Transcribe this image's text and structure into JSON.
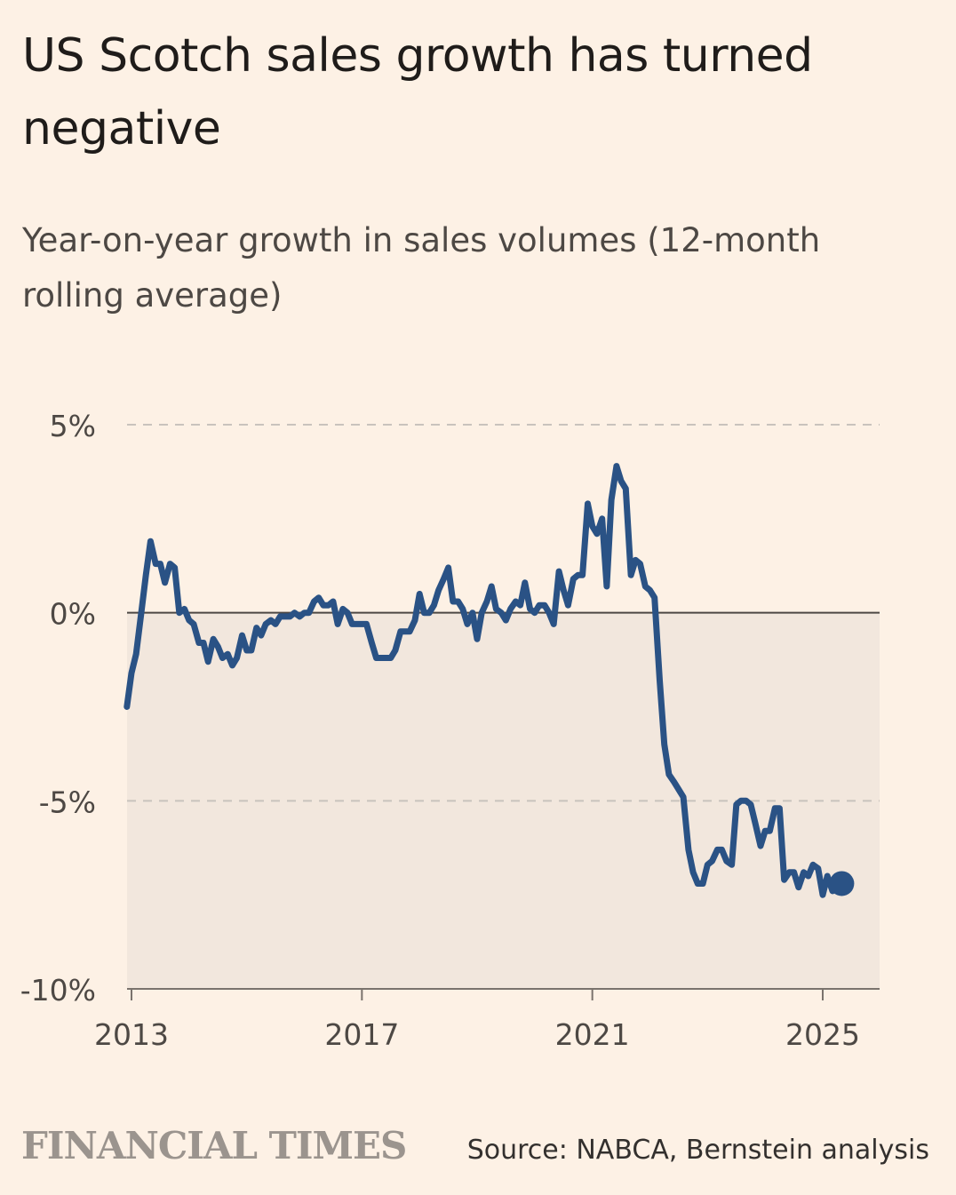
{
  "header": {
    "title": "US Scotch sales growth has turned negative",
    "subtitle": "Year-on-year growth in sales volumes (12-month rolling average)"
  },
  "footer": {
    "brand": "FINANCIAL TIMES",
    "source": "Source: NABCA, Bernstein analysis"
  },
  "colors": {
    "line": "#2a5285",
    "area": "#f2e7dd",
    "background": "#fdf1e5",
    "grid": "#c9c3bd",
    "zero": "#4d4844"
  },
  "chart_data": {
    "type": "line",
    "title": "US Scotch sales growth has turned negative",
    "subtitle": "Year-on-year growth in sales volumes (12-month rolling average)",
    "xlabel": "",
    "ylabel": "",
    "xlim": [
      2012.95,
      2025.97
    ],
    "ylim": [
      -10,
      5
    ],
    "yticks": [
      5,
      0,
      -5,
      -10
    ],
    "ytick_labels": [
      "5%",
      "0%",
      "-5%",
      "-10%"
    ],
    "xticks": [
      2013,
      2017,
      2021,
      2025
    ],
    "xtick_labels": [
      "2013",
      "2017",
      "2021",
      "2025"
    ],
    "grid": true,
    "series": [
      {
        "name": "Year-on-year growth in sales volumes",
        "points": [
          [
            2012.92,
            -2.5
          ],
          [
            2013.0,
            -1.6
          ],
          [
            2013.08,
            -1.1
          ],
          [
            2013.17,
            0.0
          ],
          [
            2013.25,
            1.0
          ],
          [
            2013.33,
            1.9
          ],
          [
            2013.42,
            1.3
          ],
          [
            2013.5,
            1.3
          ],
          [
            2013.58,
            0.8
          ],
          [
            2013.67,
            1.3
          ],
          [
            2013.75,
            1.2
          ],
          [
            2013.83,
            0.0
          ],
          [
            2013.92,
            0.1
          ],
          [
            2014.0,
            -0.2
          ],
          [
            2014.08,
            -0.3
          ],
          [
            2014.17,
            -0.8
          ],
          [
            2014.25,
            -0.8
          ],
          [
            2014.33,
            -1.3
          ],
          [
            2014.42,
            -0.7
          ],
          [
            2014.5,
            -0.9
          ],
          [
            2014.58,
            -1.2
          ],
          [
            2014.67,
            -1.1
          ],
          [
            2014.75,
            -1.4
          ],
          [
            2014.83,
            -1.2
          ],
          [
            2014.92,
            -0.6
          ],
          [
            2015.0,
            -1.0
          ],
          [
            2015.08,
            -1.0
          ],
          [
            2015.17,
            -0.4
          ],
          [
            2015.25,
            -0.6
          ],
          [
            2015.33,
            -0.3
          ],
          [
            2015.42,
            -0.2
          ],
          [
            2015.5,
            -0.3
          ],
          [
            2015.58,
            -0.1
          ],
          [
            2015.67,
            -0.1
          ],
          [
            2015.75,
            -0.1
          ],
          [
            2015.83,
            0.0
          ],
          [
            2015.92,
            -0.1
          ],
          [
            2016.0,
            0.0
          ],
          [
            2016.08,
            0.0
          ],
          [
            2016.17,
            0.3
          ],
          [
            2016.25,
            0.4
          ],
          [
            2016.33,
            0.2
          ],
          [
            2016.42,
            0.2
          ],
          [
            2016.5,
            0.3
          ],
          [
            2016.58,
            -0.3
          ],
          [
            2016.67,
            0.1
          ],
          [
            2016.75,
            0.0
          ],
          [
            2016.83,
            -0.3
          ],
          [
            2016.92,
            -0.3
          ],
          [
            2017.0,
            -0.3
          ],
          [
            2017.08,
            -0.3
          ],
          [
            2017.17,
            -0.8
          ],
          [
            2017.25,
            -1.2
          ],
          [
            2017.33,
            -1.2
          ],
          [
            2017.42,
            -1.2
          ],
          [
            2017.5,
            -1.2
          ],
          [
            2017.58,
            -1.0
          ],
          [
            2017.67,
            -0.5
          ],
          [
            2017.75,
            -0.5
          ],
          [
            2017.83,
            -0.5
          ],
          [
            2017.92,
            -0.2
          ],
          [
            2018.0,
            0.5
          ],
          [
            2018.08,
            0.0
          ],
          [
            2018.17,
            0.0
          ],
          [
            2018.25,
            0.2
          ],
          [
            2018.33,
            0.6
          ],
          [
            2018.42,
            0.9
          ],
          [
            2018.5,
            1.2
          ],
          [
            2018.58,
            0.3
          ],
          [
            2018.67,
            0.3
          ],
          [
            2018.75,
            0.1
          ],
          [
            2018.83,
            -0.3
          ],
          [
            2018.92,
            0.0
          ],
          [
            2019.0,
            -0.7
          ],
          [
            2019.08,
            0.0
          ],
          [
            2019.17,
            0.3
          ],
          [
            2019.25,
            0.7
          ],
          [
            2019.33,
            0.1
          ],
          [
            2019.42,
            0.0
          ],
          [
            2019.5,
            -0.2
          ],
          [
            2019.58,
            0.1
          ],
          [
            2019.67,
            0.3
          ],
          [
            2019.75,
            0.2
          ],
          [
            2019.83,
            0.8
          ],
          [
            2019.92,
            0.1
          ],
          [
            2020.0,
            0.0
          ],
          [
            2020.08,
            0.2
          ],
          [
            2020.17,
            0.2
          ],
          [
            2020.25,
            0.0
          ],
          [
            2020.33,
            -0.3
          ],
          [
            2020.42,
            1.1
          ],
          [
            2020.5,
            0.6
          ],
          [
            2020.58,
            0.2
          ],
          [
            2020.67,
            0.9
          ],
          [
            2020.75,
            1.0
          ],
          [
            2020.83,
            1.0
          ],
          [
            2020.92,
            2.9
          ],
          [
            2021.0,
            2.3
          ],
          [
            2021.08,
            2.1
          ],
          [
            2021.17,
            2.5
          ],
          [
            2021.25,
            0.7
          ],
          [
            2021.33,
            3.0
          ],
          [
            2021.42,
            3.9
          ],
          [
            2021.5,
            3.5
          ],
          [
            2021.58,
            3.3
          ],
          [
            2021.67,
            1.0
          ],
          [
            2021.75,
            1.4
          ],
          [
            2021.83,
            1.3
          ],
          [
            2021.92,
            0.7
          ],
          [
            2022.0,
            0.6
          ],
          [
            2022.08,
            0.4
          ],
          [
            2022.17,
            -1.8
          ],
          [
            2022.25,
            -3.5
          ],
          [
            2022.33,
            -4.3
          ],
          [
            2022.42,
            -4.5
          ],
          [
            2022.5,
            -4.7
          ],
          [
            2022.58,
            -4.9
          ],
          [
            2022.67,
            -6.3
          ],
          [
            2022.75,
            -6.9
          ],
          [
            2022.83,
            -7.2
          ],
          [
            2022.92,
            -7.2
          ],
          [
            2023.0,
            -6.7
          ],
          [
            2023.08,
            -6.6
          ],
          [
            2023.17,
            -6.3
          ],
          [
            2023.25,
            -6.3
          ],
          [
            2023.33,
            -6.6
          ],
          [
            2023.42,
            -6.7
          ],
          [
            2023.5,
            -5.1
          ],
          [
            2023.58,
            -5.0
          ],
          [
            2023.67,
            -5.0
          ],
          [
            2023.75,
            -5.1
          ],
          [
            2023.83,
            -5.6
          ],
          [
            2023.92,
            -6.2
          ],
          [
            2024.0,
            -5.8
          ],
          [
            2024.08,
            -5.8
          ],
          [
            2024.17,
            -5.2
          ],
          [
            2024.25,
            -5.2
          ],
          [
            2024.33,
            -7.1
          ],
          [
            2024.42,
            -6.9
          ],
          [
            2024.5,
            -6.9
          ],
          [
            2024.58,
            -7.3
          ],
          [
            2024.67,
            -6.9
          ],
          [
            2024.75,
            -7.0
          ],
          [
            2024.83,
            -6.7
          ],
          [
            2024.92,
            -6.8
          ],
          [
            2025.0,
            -7.5
          ],
          [
            2025.08,
            -7.0
          ],
          [
            2025.17,
            -7.4
          ],
          [
            2025.25,
            -7.2
          ],
          [
            2025.33,
            -7.2
          ]
        ],
        "end_marker": true
      }
    ]
  }
}
